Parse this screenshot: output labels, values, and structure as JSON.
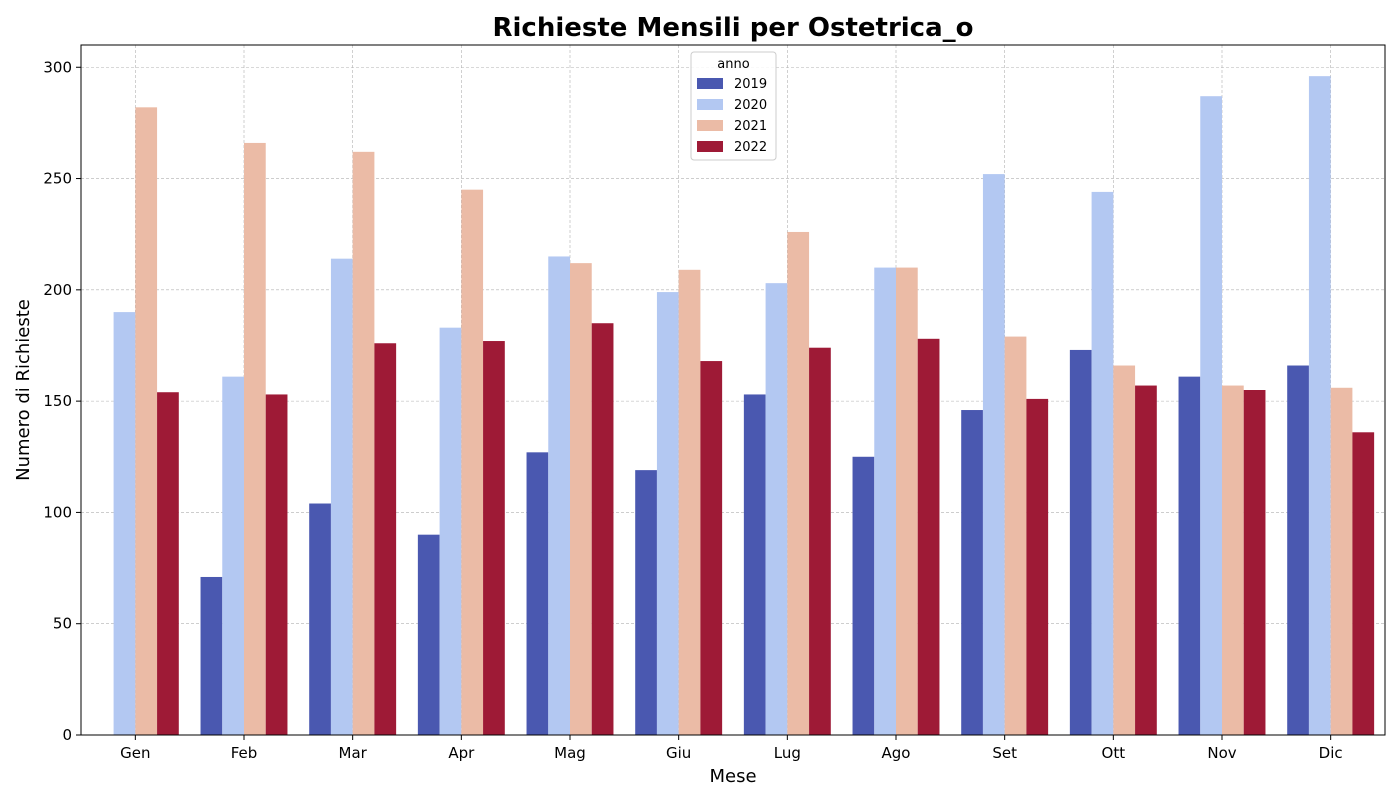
{
  "chart_data": {
    "type": "bar",
    "title": "Richieste Mensili per Ostetrica_o",
    "xlabel": "Mese",
    "ylabel": "Numero di Richieste",
    "categories": [
      "Gen",
      "Feb",
      "Mar",
      "Apr",
      "Mag",
      "Giu",
      "Lug",
      "Ago",
      "Set",
      "Ott",
      "Nov",
      "Dic"
    ],
    "ylim": [
      0,
      310
    ],
    "yticks": [
      0,
      50,
      100,
      150,
      200,
      250,
      300
    ],
    "grid": true,
    "legend": {
      "title": "anno",
      "position": "top-center"
    },
    "series": [
      {
        "name": "2019",
        "color": "#4a58b0",
        "values": [
          null,
          71,
          104,
          90,
          127,
          119,
          153,
          125,
          146,
          173,
          161,
          166
        ]
      },
      {
        "name": "2020",
        "color": "#b3c8f2",
        "values": [
          190,
          161,
          214,
          183,
          215,
          199,
          203,
          210,
          252,
          244,
          287,
          296
        ]
      },
      {
        "name": "2021",
        "color": "#ebbba6",
        "values": [
          282,
          266,
          262,
          245,
          212,
          209,
          226,
          210,
          179,
          166,
          157,
          156
        ]
      },
      {
        "name": "2022",
        "color": "#9e1a36",
        "values": [
          154,
          153,
          176,
          177,
          185,
          168,
          174,
          178,
          151,
          157,
          155,
          136
        ]
      }
    ]
  }
}
